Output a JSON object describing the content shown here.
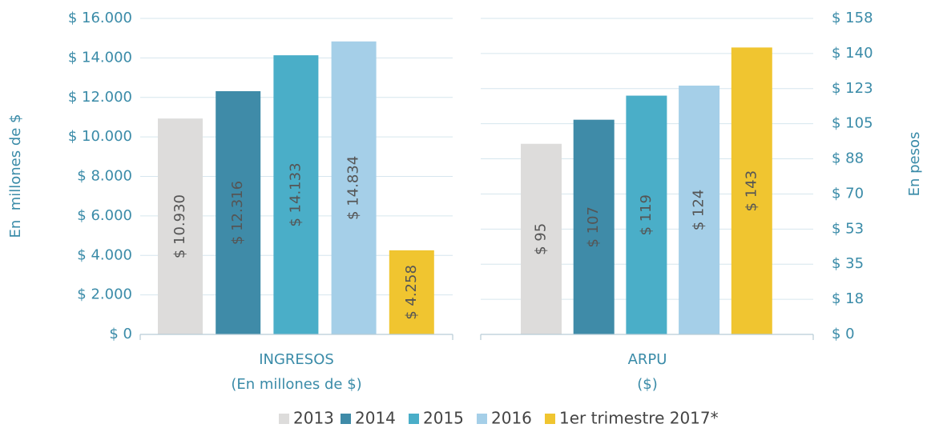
{
  "legend": {
    "names": [
      "2013",
      "2014",
      "2015",
      "2016",
      "1er trimestre 2017*"
    ],
    "colors": [
      "#dddcdb",
      "#3f8ba8",
      "#4aaec8",
      "#a5cfe8",
      "#f0c530"
    ]
  },
  "chart_data": [
    {
      "type": "bar",
      "category": "INGRESOS\n(En millones de $)",
      "ylabel": "En  millones de $",
      "values": [
        10930,
        12316,
        14133,
        14834,
        4258
      ],
      "value_labels": [
        "$ 10.930",
        "$ 12.316",
        "$ 14.133",
        "$ 14.834",
        "$ 4.258"
      ],
      "ylim": [
        0,
        16000
      ],
      "yticks": [
        {
          "value": 0,
          "label": "$ 0"
        },
        {
          "value": 2000,
          "label": "$ 2.000"
        },
        {
          "value": 4000,
          "label": "$ 4.000"
        },
        {
          "value": 6000,
          "label": "$ 6.000"
        },
        {
          "value": 8000,
          "label": "$ 8.000"
        },
        {
          "value": 10000,
          "label": "$ 10.000"
        },
        {
          "value": 12000,
          "label": "$ 12.000"
        },
        {
          "value": 14000,
          "label": "$ 14.000"
        },
        {
          "value": 16000,
          "label": "$ 16.000"
        }
      ],
      "grid": true
    },
    {
      "type": "bar",
      "category": "ARPU\n($)",
      "y2label": "En pesos",
      "values": [
        95,
        107,
        119,
        124,
        143
      ],
      "value_labels": [
        "$ 95",
        "$ 107",
        "$ 119",
        "$ 124",
        "$ 143"
      ],
      "y2lim": [
        0,
        157.5
      ],
      "y2ticks": [
        {
          "value": 0,
          "label": "$ 0"
        },
        {
          "value": 17.5,
          "label": "$ 18"
        },
        {
          "value": 35,
          "label": "$ 35"
        },
        {
          "value": 52.5,
          "label": "$ 53"
        },
        {
          "value": 70,
          "label": "$ 70"
        },
        {
          "value": 87.5,
          "label": "$ 88"
        },
        {
          "value": 105,
          "label": "$ 105"
        },
        {
          "value": 122.5,
          "label": "$ 123"
        },
        {
          "value": 140,
          "label": "$ 140"
        },
        {
          "value": 157.5,
          "label": "$ 158"
        }
      ],
      "grid": true
    }
  ]
}
